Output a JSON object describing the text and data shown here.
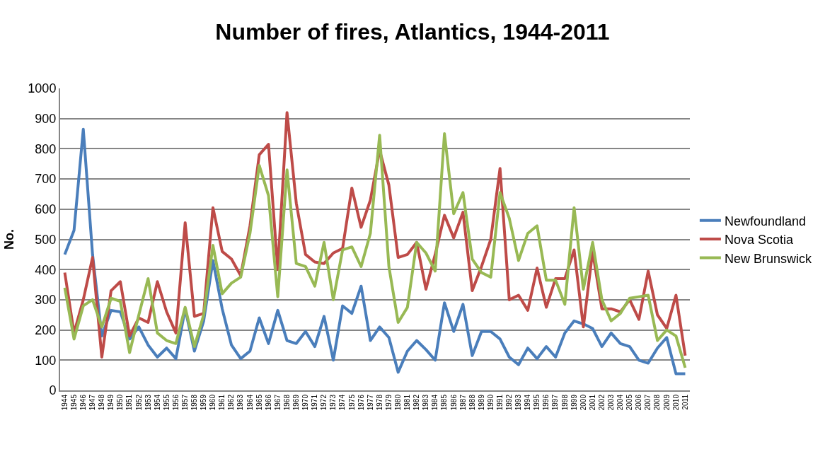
{
  "chart_data": {
    "type": "line",
    "title": "Number of fires, Atlantics, 1944-2011",
    "ylabel": "No.",
    "categories": [
      "1944",
      "1945",
      "1946",
      "1947",
      "1948",
      "1949",
      "1950",
      "1951",
      "1952",
      "1953",
      "1954",
      "1955",
      "1956",
      "1957",
      "1958",
      "1959",
      "1960",
      "1961",
      "1962",
      "1963",
      "1964",
      "1965",
      "1966",
      "1967",
      "1968",
      "1969",
      "1970",
      "1971",
      "1972",
      "1973",
      "1974",
      "1975",
      "1976",
      "1977",
      "1978",
      "1979",
      "1980",
      "1981",
      "1982",
      "1983",
      "1984",
      "1985",
      "1986",
      "1987",
      "1988",
      "1989",
      "1990",
      "1991",
      "1992",
      "1993",
      "1994",
      "1995",
      "1996",
      "1997",
      "1998",
      "1999",
      "2000",
      "2001",
      "2002",
      "2003",
      "2004",
      "2005",
      "2006",
      "2007",
      "2008",
      "2009",
      "2010",
      "2011"
    ],
    "series": [
      {
        "name": "Newfoundland",
        "color": "#4a7ebb",
        "values": [
          450,
          530,
          865,
          450,
          180,
          265,
          260,
          170,
          210,
          150,
          110,
          140,
          105,
          270,
          130,
          230,
          430,
          270,
          150,
          105,
          130,
          240,
          155,
          265,
          165,
          155,
          195,
          145,
          245,
          100,
          280,
          255,
          345,
          165,
          210,
          175,
          60,
          130,
          165,
          135,
          100,
          290,
          195,
          285,
          115,
          195,
          195,
          170,
          110,
          85,
          140,
          105,
          145,
          110,
          190,
          230,
          220,
          205,
          145,
          190,
          155,
          145,
          100,
          90,
          140,
          175,
          55,
          55
        ]
      },
      {
        "name": "Nova Scotia",
        "color": "#be4b48",
        "values": [
          390,
          190,
          300,
          440,
          110,
          330,
          360,
          180,
          240,
          225,
          360,
          260,
          190,
          555,
          245,
          255,
          605,
          460,
          435,
          380,
          545,
          780,
          815,
          400,
          920,
          620,
          450,
          425,
          420,
          455,
          470,
          670,
          540,
          630,
          795,
          680,
          440,
          450,
          490,
          335,
          450,
          580,
          505,
          590,
          330,
          410,
          500,
          735,
          300,
          315,
          265,
          405,
          275,
          370,
          370,
          465,
          210,
          460,
          270,
          270,
          260,
          300,
          235,
          395,
          250,
          205,
          315,
          115
        ]
      },
      {
        "name": "New Brunswick",
        "color": "#98b954",
        "values": [
          340,
          170,
          280,
          300,
          210,
          305,
          295,
          125,
          250,
          370,
          190,
          165,
          155,
          275,
          145,
          250,
          480,
          320,
          355,
          375,
          520,
          745,
          645,
          310,
          730,
          420,
          410,
          345,
          490,
          300,
          465,
          475,
          410,
          520,
          845,
          410,
          225,
          275,
          490,
          455,
          395,
          850,
          585,
          655,
          435,
          390,
          375,
          655,
          570,
          430,
          520,
          545,
          365,
          365,
          285,
          605,
          335,
          490,
          300,
          230,
          255,
          305,
          310,
          315,
          165,
          200,
          180,
          75
        ]
      }
    ],
    "ylim": [
      0,
      1000
    ],
    "yticks": [
      0,
      100,
      200,
      300,
      400,
      500,
      600,
      700,
      800,
      900,
      1000
    ],
    "grid": "y",
    "legend": "right",
    "marker": "none",
    "line_style": "solid"
  }
}
